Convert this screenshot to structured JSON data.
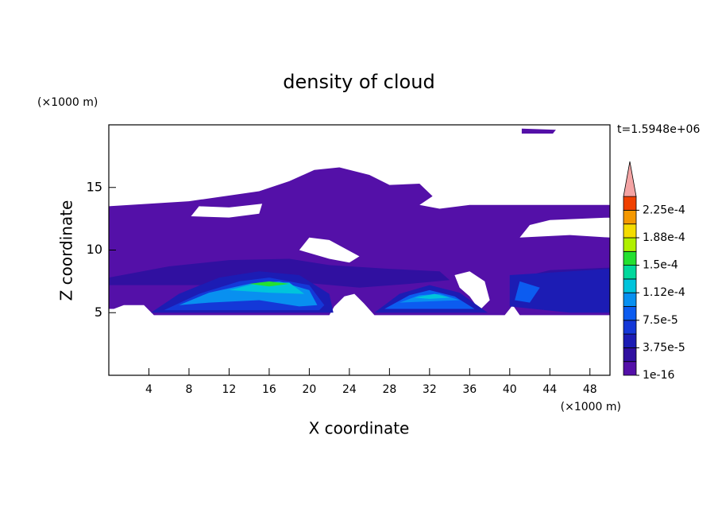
{
  "chart_data": {
    "type": "contour",
    "title": "density of cloud",
    "x_label": "X coordinate",
    "y_label": "Z coordinate",
    "x_unit": "(×1000 m)",
    "y_unit": "(×1000 m)",
    "annotation": "t=1.5948e+06",
    "xlim": [
      0,
      50
    ],
    "ylim": [
      0,
      20
    ],
    "xticks": [
      4,
      8,
      12,
      16,
      20,
      24,
      28,
      32,
      36,
      40,
      44,
      48
    ],
    "yticks": [
      5,
      10,
      15
    ],
    "levels": [
      1e-16,
      1.875e-05,
      3.75e-05,
      5.625e-05,
      7.5e-05,
      9.375e-05,
      0.0001125,
      0.00013125,
      0.00015,
      0.00016875,
      0.0001875,
      0.00020625,
      0.000225,
      0.00024375
    ],
    "colors": [
      "#5410a8",
      "#3010a0",
      "#1c1cb4",
      "#1438d8",
      "#0c5cf0",
      "#0890f0",
      "#00c4dc",
      "#00d89c",
      "#24e030",
      "#b0f000",
      "#f4dc00",
      "#f49800",
      "#f04000"
    ],
    "extend_color": "#f4a4a4",
    "colorbar_ticks": [
      {
        "value": 1e-16,
        "label": "1e-16"
      },
      {
        "value": 3.75e-05,
        "label": "3.75e-5"
      },
      {
        "value": 7.5e-05,
        "label": "7.5e-5"
      },
      {
        "value": 0.0001125,
        "label": "1.12e-4"
      },
      {
        "value": 0.00015,
        "label": "1.5e-4"
      },
      {
        "value": 0.0001875,
        "label": "1.88e-4"
      },
      {
        "value": 0.000225,
        "label": "2.25e-4"
      }
    ],
    "regions": [
      {
        "level": 0,
        "rings": [
          [
            [
              0,
              13.5
            ],
            [
              8,
              13.9
            ],
            [
              15,
              14.7
            ],
            [
              18,
              15.5
            ],
            [
              20.5,
              16.4
            ],
            [
              23,
              16.6
            ],
            [
              26,
              16
            ],
            [
              28,
              15.2
            ],
            [
              31,
              15.3
            ],
            [
              32.3,
              14.3
            ],
            [
              31,
              13.6
            ],
            [
              33,
              13.3
            ],
            [
              36,
              13.6
            ],
            [
              50,
              13.6
            ],
            [
              50,
              4.8
            ],
            [
              41,
              4.8
            ],
            [
              40.3,
              5.6
            ],
            [
              39.5,
              4.8
            ],
            [
              26.5,
              4.8
            ],
            [
              25.5,
              5.7
            ],
            [
              24.5,
              6.5
            ],
            [
              23.5,
              6.3
            ],
            [
              22.5,
              5.5
            ],
            [
              22,
              4.8
            ],
            [
              4.5,
              4.8
            ],
            [
              3.5,
              5.6
            ],
            [
              1.5,
              5.6
            ],
            [
              0.5,
              5.3
            ],
            [
              0,
              5.3
            ]
          ],
          [
            [
              8.2,
              12.7
            ],
            [
              9,
              13.5
            ],
            [
              12,
              13.4
            ],
            [
              15.3,
              13.7
            ],
            [
              15,
              12.9
            ],
            [
              12,
              12.6
            ]
          ],
          [
            [
              41,
              11
            ],
            [
              42,
              12
            ],
            [
              44,
              12.4
            ],
            [
              50,
              12.6
            ],
            [
              50,
              11
            ],
            [
              46,
              11.2
            ]
          ],
          [
            [
              19,
              10
            ],
            [
              20,
              11
            ],
            [
              22,
              10.8
            ],
            [
              25,
              9.5
            ],
            [
              24,
              9
            ],
            [
              22,
              9.3
            ]
          ],
          [
            [
              34.5,
              8
            ],
            [
              36,
              8.3
            ],
            [
              37.5,
              7.5
            ],
            [
              38,
              6
            ],
            [
              37,
              5.2
            ],
            [
              36,
              6.3
            ],
            [
              35,
              7
            ]
          ]
        ]
      },
      {
        "level": 0,
        "rings": [
          [
            [
              41.2,
              19.3
            ],
            [
              44.3,
              19.3
            ],
            [
              44.6,
              19.6
            ],
            [
              41.2,
              19.7
            ]
          ]
        ]
      },
      {
        "level": 1,
        "rings": [
          [
            [
              0,
              7.8
            ],
            [
              6,
              8.7
            ],
            [
              12,
              9.2
            ],
            [
              18,
              9.3
            ],
            [
              22,
              8.8
            ],
            [
              28,
              8.5
            ],
            [
              33,
              8.3
            ],
            [
              34,
              7.6
            ],
            [
              30,
              7.3
            ],
            [
              25,
              7
            ],
            [
              18,
              7.5
            ],
            [
              10,
              7.2
            ],
            [
              0,
              7.2
            ]
          ]
        ]
      },
      {
        "level": 1,
        "rings": [
          [
            [
              40,
              7.6
            ],
            [
              44,
              8.4
            ],
            [
              50,
              8.6
            ],
            [
              50,
              7.3
            ],
            [
              44,
              7.2
            ]
          ]
        ]
      },
      {
        "level": 2,
        "rings": [
          [
            [
              4.2,
              5
            ],
            [
              7,
              6.5
            ],
            [
              11,
              7.8
            ],
            [
              15,
              8.3
            ],
            [
              19,
              8
            ],
            [
              22,
              6.5
            ],
            [
              22.4,
              5
            ]
          ]
        ]
      },
      {
        "level": 2,
        "rings": [
          [
            [
              26.5,
              5
            ],
            [
              29,
              6.5
            ],
            [
              32,
              7.2
            ],
            [
              35,
              6.6
            ],
            [
              37.8,
              5
            ]
          ]
        ]
      },
      {
        "level": 2,
        "rings": [
          [
            [
              40,
              5.5
            ],
            [
              40,
              8
            ],
            [
              44,
              8.2
            ],
            [
              50,
              8.5
            ],
            [
              50,
              5
            ],
            [
              46,
              5
            ]
          ]
        ]
      },
      {
        "level": 3,
        "rings": [
          [
            [
              5.5,
              5.2
            ],
            [
              9,
              6.5
            ],
            [
              13,
              7.5
            ],
            [
              16,
              7.8
            ],
            [
              20,
              7.2
            ],
            [
              21.5,
              5.6
            ],
            [
              21,
              5.2
            ]
          ]
        ]
      },
      {
        "level": 4,
        "rings": [
          [
            [
              27.5,
              5.3
            ],
            [
              30,
              6.4
            ],
            [
              32,
              6.8
            ],
            [
              34.5,
              6.3
            ],
            [
              36.5,
              5.3
            ]
          ]
        ]
      },
      {
        "level": 4,
        "rings": [
          [
            [
              40.5,
              6
            ],
            [
              41,
              7.5
            ],
            [
              43,
              7
            ],
            [
              42,
              5.8
            ]
          ]
        ]
      },
      {
        "level": 5,
        "rings": [
          [
            [
              7,
              5.6
            ],
            [
              10,
              6.6
            ],
            [
              14,
              7.3
            ],
            [
              17,
              7.5
            ],
            [
              20,
              6.8
            ],
            [
              20.8,
              5.6
            ],
            [
              19,
              5.5
            ],
            [
              15,
              6
            ],
            [
              10,
              5.8
            ]
          ]
        ]
      },
      {
        "level": 5,
        "rings": [
          [
            [
              29,
              5.8
            ],
            [
              31,
              6.4
            ],
            [
              33,
              6.5
            ],
            [
              35,
              6
            ]
          ]
        ]
      },
      {
        "level": 6,
        "rings": [
          [
            [
              12,
              6.8
            ],
            [
              15,
              7.4
            ],
            [
              18,
              7.4
            ],
            [
              19.5,
              6.5
            ],
            [
              16,
              6.6
            ]
          ]
        ]
      },
      {
        "level": 6,
        "rings": [
          [
            [
              30.5,
              6.2
            ],
            [
              32.5,
              6.5
            ],
            [
              34,
              6.2
            ],
            [
              32,
              6.1
            ]
          ]
        ]
      },
      {
        "level": 8,
        "rings": [
          [
            [
              14,
              7.3
            ],
            [
              16,
              7.5
            ],
            [
              18,
              7.3
            ],
            [
              16,
              7.1
            ]
          ]
        ]
      }
    ]
  }
}
